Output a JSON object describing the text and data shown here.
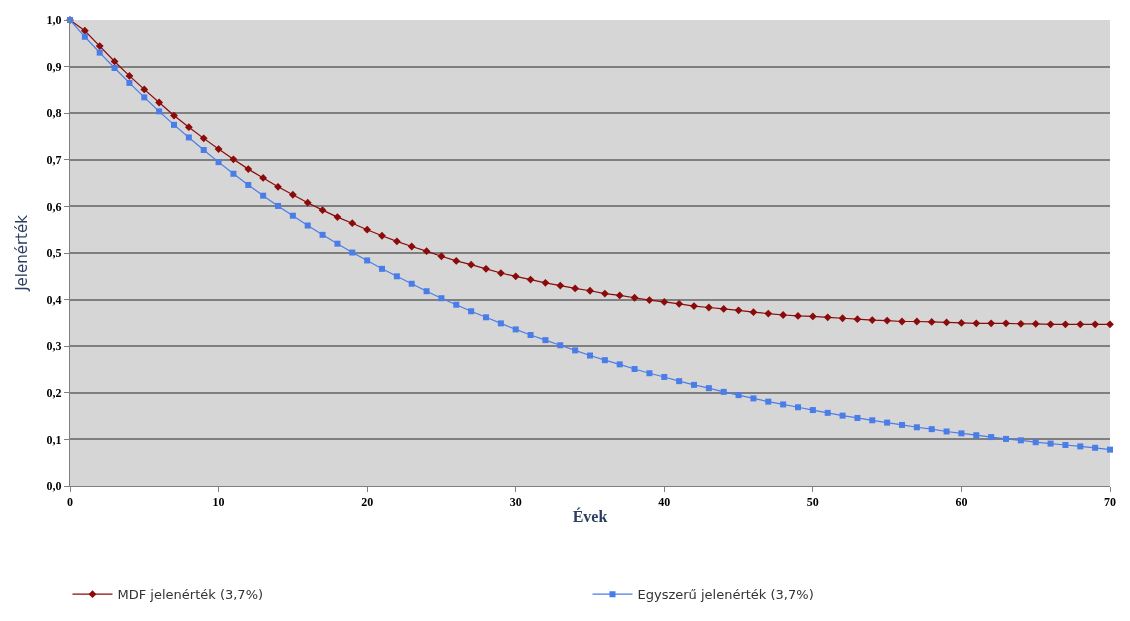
{
  "chart_data": {
    "type": "line",
    "xlabel": "Évek",
    "ylabel": "Jelenérték",
    "x": [
      0,
      1,
      2,
      3,
      4,
      5,
      6,
      7,
      8,
      9,
      10,
      11,
      12,
      13,
      14,
      15,
      16,
      17,
      18,
      19,
      20,
      21,
      22,
      23,
      24,
      25,
      26,
      27,
      28,
      29,
      30,
      31,
      32,
      33,
      34,
      35,
      36,
      37,
      38,
      39,
      40,
      41,
      42,
      43,
      44,
      45,
      46,
      47,
      48,
      49,
      50,
      51,
      52,
      53,
      54,
      55,
      56,
      57,
      58,
      59,
      60,
      61,
      62,
      63,
      64,
      65,
      66,
      67,
      68,
      69,
      70
    ],
    "series": [
      {
        "name": "MDF jelenérték (3,7%)",
        "color": "#8b0a0a",
        "marker": "diamond",
        "values": [
          1.0,
          0.977,
          0.944,
          0.911,
          0.88,
          0.851,
          0.823,
          0.795,
          0.77,
          0.746,
          0.723,
          0.701,
          0.68,
          0.661,
          0.642,
          0.625,
          0.608,
          0.592,
          0.577,
          0.564,
          0.55,
          0.537,
          0.525,
          0.514,
          0.504,
          0.493,
          0.483,
          0.475,
          0.466,
          0.457,
          0.45,
          0.443,
          0.436,
          0.43,
          0.424,
          0.419,
          0.413,
          0.409,
          0.404,
          0.399,
          0.395,
          0.391,
          0.386,
          0.383,
          0.38,
          0.377,
          0.373,
          0.37,
          0.367,
          0.365,
          0.364,
          0.362,
          0.36,
          0.358,
          0.356,
          0.355,
          0.353,
          0.353,
          0.352,
          0.351,
          0.35,
          0.349,
          0.349,
          0.349,
          0.348,
          0.348,
          0.347,
          0.347,
          0.347,
          0.347,
          0.347
        ]
      },
      {
        "name": "Egyszerű jelenérték (3,7%)",
        "color": "#4a7de8",
        "marker": "square",
        "values": [
          1.0,
          0.964,
          0.93,
          0.897,
          0.865,
          0.834,
          0.804,
          0.775,
          0.748,
          0.721,
          0.695,
          0.67,
          0.646,
          0.623,
          0.601,
          0.58,
          0.559,
          0.539,
          0.52,
          0.501,
          0.484,
          0.466,
          0.45,
          0.434,
          0.418,
          0.403,
          0.389,
          0.375,
          0.362,
          0.349,
          0.336,
          0.324,
          0.313,
          0.302,
          0.291,
          0.28,
          0.27,
          0.261,
          0.251,
          0.242,
          0.234,
          0.225,
          0.217,
          0.21,
          0.202,
          0.195,
          0.188,
          0.181,
          0.175,
          0.169,
          0.163,
          0.157,
          0.151,
          0.146,
          0.141,
          0.136,
          0.131,
          0.126,
          0.122,
          0.117,
          0.113,
          0.109,
          0.105,
          0.101,
          0.098,
          0.094,
          0.091,
          0.088,
          0.085,
          0.082,
          0.078
        ]
      }
    ],
    "xlim": [
      0,
      70
    ],
    "xticks": [
      0,
      10,
      20,
      30,
      40,
      50,
      60,
      70
    ],
    "ylim": [
      0,
      1
    ],
    "yticks": [
      {
        "value": 0,
        "label": "0,0"
      },
      {
        "value": 0.1,
        "label": "0,1"
      },
      {
        "value": 0.2,
        "label": "0,2"
      },
      {
        "value": 0.3,
        "label": "0,3"
      },
      {
        "value": 0.4,
        "label": "0,4"
      },
      {
        "value": 0.5,
        "label": "0,5"
      },
      {
        "value": 0.6,
        "label": "0,6"
      },
      {
        "value": 0.7,
        "label": "0,7"
      },
      {
        "value": 0.8,
        "label": "0,8"
      },
      {
        "value": 0.9,
        "label": "0,9"
      },
      {
        "value": 1.0,
        "label": "1,0"
      }
    ],
    "grid": "y",
    "legend": "bottom",
    "line_style": "solid"
  }
}
